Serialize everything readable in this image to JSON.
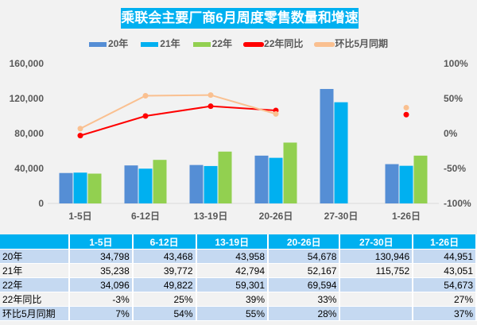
{
  "chart_data": {
    "type": "bar",
    "title": "乘联会主要厂商6月周度零售数量和增速",
    "categories": [
      "1-5日",
      "6-12日",
      "13-19日",
      "20-26日",
      "27-30日",
      "1-26日"
    ],
    "ylim": [
      0,
      160000
    ],
    "yticks": [
      "0",
      "40,000",
      "80,000",
      "120,000",
      "160,000"
    ],
    "y2lim": [
      -100,
      100
    ],
    "y2ticks": [
      "-100%",
      "-50%",
      "0%",
      "50%",
      "100%"
    ],
    "legend_position": "top",
    "series": [
      {
        "name": "20年",
        "type": "bar",
        "color": "#558ed5",
        "values": [
          34798,
          43468,
          43958,
          54678,
          130946,
          44951
        ]
      },
      {
        "name": "21年",
        "type": "bar",
        "color": "#00b0f0",
        "values": [
          35238,
          39772,
          42794,
          52167,
          115752,
          43051
        ]
      },
      {
        "name": "22年",
        "type": "bar",
        "color": "#92d050",
        "values": [
          34096,
          49822,
          59301,
          69594,
          null,
          54673
        ]
      },
      {
        "name": "22年同比",
        "type": "line",
        "axis": "right",
        "color": "#ff0000",
        "values": [
          -3,
          25,
          39,
          33,
          null,
          27
        ]
      },
      {
        "name": "环比5月同期",
        "type": "line",
        "axis": "right",
        "color": "#fac090",
        "values": [
          7,
          54,
          55,
          28,
          null,
          37
        ]
      }
    ]
  },
  "table": {
    "header": [
      "",
      "1-5日",
      "6-12日",
      "13-19日",
      "20-26日",
      "27-30日",
      "1-26日"
    ],
    "rows": [
      [
        "20年",
        "34,798",
        "43,468",
        "43,958",
        "54,678",
        "130,946",
        "44,951"
      ],
      [
        "21年",
        "35,238",
        "39,772",
        "42,794",
        "52,167",
        "115,752",
        "43,051"
      ],
      [
        "22年",
        "34,096",
        "49,822",
        "59,301",
        "69,594",
        "",
        "54,673"
      ],
      [
        "22年同比",
        "-3%",
        "25%",
        "39%",
        "33%",
        "",
        "27%"
      ],
      [
        "环比5月同期",
        "7%",
        "54%",
        "55%",
        "28%",
        "",
        "37%"
      ]
    ]
  }
}
